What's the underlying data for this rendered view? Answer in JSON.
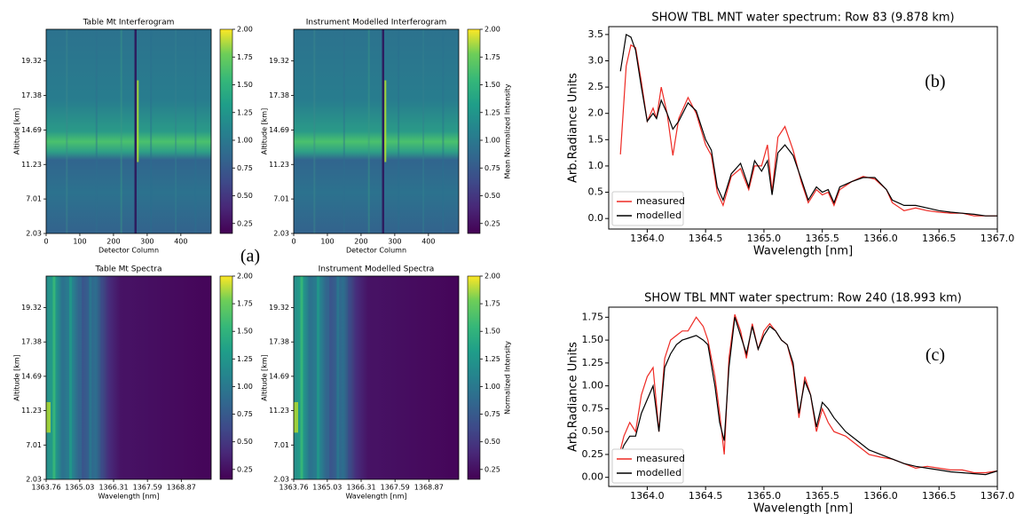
{
  "figure_label": "(a)",
  "chart_data": [
    {
      "type": "heatmap",
      "title": "Table Mt Interferogram",
      "xlabel": "Detector Column",
      "ylabel": "Altitude [km]",
      "xlim": [
        0,
        490
      ],
      "xticks": [
        0,
        100,
        200,
        300,
        400
      ],
      "yticklabels": [
        "2.03",
        "7.01",
        "11.23",
        "14.69",
        "17.38",
        "19.32"
      ],
      "clim": [
        0.16,
        2.0
      ],
      "cticks": [
        0.25,
        {
          "value": 0.5,
          "label": "0.50"
        },
        0.75,
        {
          "value": 1.0,
          "label": "1.00"
        },
        1.25,
        {
          "value": 1.5,
          "label": "1.50"
        },
        1.75,
        {
          "value": 2.0,
          "label": "2.00"
        }
      ]
    },
    {
      "type": "heatmap",
      "title": "Instrument Modelled Interferogram",
      "xlabel": "Detector Column",
      "ylabel": "Altitude [km]",
      "colorbar_label": "Mean Normalized Intensity",
      "xlim": [
        0,
        490
      ],
      "xticks": [
        0,
        100,
        200,
        300,
        400
      ],
      "yticklabels": [
        "2.03",
        "7.01",
        "11.23",
        "14.69",
        "17.38",
        "19.32"
      ],
      "clim": [
        0.16,
        2.0
      ],
      "cticks": [
        0.25,
        {
          "value": 0.5,
          "label": "0.50"
        },
        0.75,
        {
          "value": 1.0,
          "label": "1.00"
        },
        1.25,
        {
          "value": 1.5,
          "label": "1.50"
        },
        1.75,
        {
          "value": 2.0,
          "label": "2.00"
        }
      ]
    },
    {
      "type": "heatmap",
      "title": "Table Mt Spectra",
      "xlabel": "Wavelength [nm]",
      "ylabel": "Altitude [km]",
      "xlim": [
        1363.76,
        1370.0
      ],
      "xticks": [
        1363.76,
        1365.03,
        1366.31,
        1367.59,
        1368.87
      ],
      "yticklabels": [
        "2.03",
        "7.01",
        "11.23",
        "14.69",
        "17.38",
        "19.32"
      ],
      "clim": [
        0.16,
        2.0
      ],
      "cticks": [
        0.25,
        {
          "value": 0.5,
          "label": "0.50"
        },
        0.75,
        {
          "value": 1.0,
          "label": "1.00"
        },
        1.25,
        {
          "value": 1.5,
          "label": "1.50"
        },
        1.75,
        {
          "value": 2.0,
          "label": "2.00"
        }
      ]
    },
    {
      "type": "heatmap",
      "title": "Instrument Modelled Spectra",
      "xlabel": "Wavelength [nm]",
      "ylabel": "Altitude [km]",
      "colorbar_label": "Normalized Intensity",
      "xlim": [
        1363.76,
        1370.0
      ],
      "xticks": [
        1363.76,
        1365.03,
        1366.31,
        1367.59,
        1368.87
      ],
      "yticklabels": [
        "2.03",
        "7.01",
        "11.23",
        "14.69",
        "17.38",
        "19.32"
      ],
      "clim": [
        0.16,
        2.0
      ],
      "cticks": [
        0.25,
        {
          "value": 0.5,
          "label": "0.50"
        },
        0.75,
        {
          "value": 1.0,
          "label": "1.00"
        },
        1.25,
        {
          "value": 1.5,
          "label": "1.50"
        },
        1.75,
        {
          "value": 2.0,
          "label": "2.00"
        }
      ]
    },
    {
      "type": "line",
      "title": "SHOW TBL MNT water spectrum: Row 83 (9.878 km)",
      "annotation": "(b)",
      "xlabel": "Wavelength [nm]",
      "ylabel": "Arb.Radiance Units",
      "legend": "lower left",
      "xlim": [
        1363.67,
        1367.0
      ],
      "xticks": [
        {
          "value": 1364.0,
          "label": "1364.0"
        },
        1364.5,
        {
          "value": 1365.0,
          "label": "1365.0"
        },
        1365.5,
        {
          "value": 1366.0,
          "label": "1366.0"
        },
        1366.5,
        {
          "value": 1367.0,
          "label": "1367.0"
        }
      ],
      "ylim": [
        -0.2,
        3.65
      ],
      "yticks": [
        {
          "value": 0,
          "label": "0.0"
        },
        0.5,
        {
          "value": 1,
          "label": "1.0"
        },
        1.5,
        {
          "value": 2,
          "label": "2.0"
        },
        2.5,
        {
          "value": 3,
          "label": "3.0"
        },
        3.5
      ],
      "x": [
        1363.77,
        1363.82,
        1363.86,
        1363.9,
        1363.95,
        1364.0,
        1364.05,
        1364.08,
        1364.12,
        1364.17,
        1364.22,
        1364.27,
        1364.35,
        1364.42,
        1364.5,
        1364.55,
        1364.6,
        1364.65,
        1364.72,
        1364.8,
        1364.87,
        1364.92,
        1364.98,
        1365.03,
        1365.07,
        1365.12,
        1365.18,
        1365.25,
        1365.32,
        1365.38,
        1365.45,
        1365.5,
        1365.55,
        1365.6,
        1365.65,
        1365.75,
        1365.85,
        1365.95,
        1366.05,
        1366.1,
        1366.2,
        1366.3,
        1366.4,
        1366.5,
        1366.6,
        1366.7,
        1366.8,
        1366.9,
        1367.0
      ],
      "series": [
        {
          "name": "measured",
          "color": "#ee2a24",
          "values": [
            1.22,
            2.9,
            3.3,
            3.25,
            2.6,
            1.85,
            2.1,
            1.9,
            2.5,
            2.0,
            1.2,
            1.9,
            2.3,
            2.0,
            1.4,
            1.2,
            0.5,
            0.25,
            0.8,
            0.95,
            0.55,
            1.0,
            1.0,
            1.4,
            0.5,
            1.55,
            1.75,
            1.3,
            0.7,
            0.3,
            0.55,
            0.45,
            0.5,
            0.25,
            0.55,
            0.7,
            0.8,
            0.75,
            0.55,
            0.3,
            0.15,
            0.2,
            0.15,
            0.12,
            0.1,
            0.1,
            0.05,
            0.05,
            0.05
          ]
        },
        {
          "name": "modelled",
          "color": "#000000",
          "values": [
            2.8,
            3.5,
            3.45,
            3.2,
            2.5,
            1.85,
            2.0,
            1.9,
            2.25,
            2.0,
            1.7,
            1.85,
            2.2,
            2.05,
            1.5,
            1.3,
            0.6,
            0.35,
            0.85,
            1.05,
            0.6,
            1.1,
            0.9,
            1.1,
            0.45,
            1.25,
            1.4,
            1.2,
            0.75,
            0.35,
            0.6,
            0.5,
            0.55,
            0.3,
            0.6,
            0.7,
            0.78,
            0.78,
            0.55,
            0.35,
            0.25,
            0.25,
            0.2,
            0.15,
            0.12,
            0.1,
            0.08,
            0.05,
            0.05
          ]
        }
      ]
    },
    {
      "type": "line",
      "title": "SHOW TBL MNT water spectrum: Row 240 (18.993 km)",
      "annotation": "(c)",
      "xlabel": "Wavelength [nm]",
      "ylabel": "Arb.Radiance Units",
      "legend": "lower left",
      "xlim": [
        1363.67,
        1367.0
      ],
      "xticks": [
        {
          "value": 1364.0,
          "label": "1364.0"
        },
        1364.5,
        {
          "value": 1365.0,
          "label": "1365.0"
        },
        1365.5,
        {
          "value": 1366.0,
          "label": "1366.0"
        },
        1366.5,
        {
          "value": 1367.0,
          "label": "1367.0"
        }
      ],
      "ylim": [
        -0.1,
        1.86
      ],
      "yticks": [
        {
          "value": 0,
          "label": "0.00"
        },
        0.25,
        {
          "value": 0.5,
          "label": "0.50"
        },
        0.75,
        {
          "value": 1.0,
          "label": "1.00"
        },
        1.25,
        {
          "value": 1.5,
          "label": "1.50"
        },
        1.75
      ],
      "x": [
        1363.77,
        1363.8,
        1363.85,
        1363.9,
        1363.95,
        1364.0,
        1364.05,
        1364.1,
        1364.15,
        1364.2,
        1364.25,
        1364.3,
        1364.35,
        1364.42,
        1364.48,
        1364.52,
        1364.58,
        1364.62,
        1364.66,
        1364.7,
        1364.75,
        1364.8,
        1364.85,
        1364.9,
        1364.95,
        1365.0,
        1365.05,
        1365.1,
        1365.15,
        1365.2,
        1365.25,
        1365.3,
        1365.35,
        1365.4,
        1365.45,
        1365.5,
        1365.55,
        1365.6,
        1365.7,
        1365.8,
        1365.9,
        1366.0,
        1366.1,
        1366.2,
        1366.3,
        1366.4,
        1366.5,
        1366.6,
        1366.7,
        1366.8,
        1366.9,
        1367.0
      ],
      "series": [
        {
          "name": "measured",
          "color": "#ee2a24",
          "values": [
            0.3,
            0.45,
            0.6,
            0.5,
            0.9,
            1.1,
            1.2,
            0.5,
            1.3,
            1.5,
            1.55,
            1.6,
            1.6,
            1.75,
            1.65,
            1.5,
            1.1,
            0.7,
            0.25,
            1.3,
            1.78,
            1.6,
            1.3,
            1.68,
            1.4,
            1.6,
            1.68,
            1.6,
            1.5,
            1.45,
            1.2,
            0.65,
            1.1,
            0.9,
            0.5,
            0.75,
            0.6,
            0.5,
            0.45,
            0.35,
            0.25,
            0.22,
            0.2,
            0.15,
            0.1,
            0.12,
            0.1,
            0.08,
            0.08,
            0.05,
            0.05,
            0.07
          ]
        },
        {
          "name": "modelled",
          "color": "#000000",
          "values": [
            0.25,
            0.35,
            0.45,
            0.45,
            0.7,
            0.85,
            1.0,
            0.5,
            1.2,
            1.35,
            1.45,
            1.5,
            1.52,
            1.55,
            1.5,
            1.45,
            1.0,
            0.6,
            0.4,
            1.2,
            1.75,
            1.55,
            1.35,
            1.65,
            1.4,
            1.55,
            1.65,
            1.6,
            1.5,
            1.45,
            1.25,
            0.7,
            1.05,
            0.9,
            0.55,
            0.82,
            0.75,
            0.65,
            0.5,
            0.4,
            0.3,
            0.25,
            0.2,
            0.15,
            0.12,
            0.1,
            0.08,
            0.06,
            0.05,
            0.04,
            0.03,
            0.07
          ]
        }
      ]
    }
  ]
}
